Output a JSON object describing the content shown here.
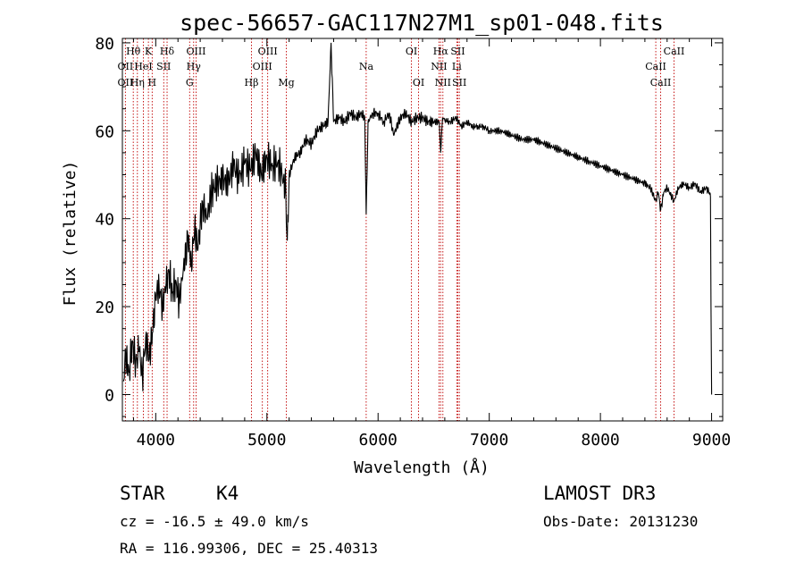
{
  "chart_data": {
    "type": "line",
    "title": "spec-56657-GAC117N27M1_sp01-048.fits",
    "xlabel": "Wavelength (Å)",
    "ylabel": "Flux (relative)",
    "xlim": [
      3700,
      9100
    ],
    "ylim": [
      -6,
      81
    ],
    "xticks": [
      4000,
      5000,
      6000,
      7000,
      8000,
      9000
    ],
    "xtick_labels": [
      "4000",
      "5000",
      "6000",
      "7000",
      "8000",
      "9000"
    ],
    "yticks": [
      0,
      20,
      40,
      60,
      80
    ],
    "ytick_labels": [
      "0",
      "20",
      "40",
      "60",
      "80"
    ],
    "grid": false,
    "series": [
      {
        "name": "flux",
        "color": "#000000",
        "x": [
          3710,
          3730,
          3760,
          3790,
          3820,
          3850,
          3880,
          3910,
          3940,
          3970,
          4000,
          4030,
          4060,
          4090,
          4120,
          4150,
          4180,
          4210,
          4250,
          4290,
          4320,
          4350,
          4380,
          4420,
          4460,
          4500,
          4550,
          4600,
          4650,
          4700,
          4750,
          4800,
          4850,
          4900,
          4950,
          5000,
          5050,
          5100,
          5150,
          5170,
          5183,
          5200,
          5250,
          5300,
          5350,
          5400,
          5450,
          5500,
          5550,
          5577,
          5600,
          5650,
          5700,
          5750,
          5800,
          5850,
          5880,
          5893,
          5910,
          5950,
          6000,
          6050,
          6100,
          6140,
          6200,
          6250,
          6300,
          6350,
          6400,
          6450,
          6500,
          6550,
          6563,
          6580,
          6620,
          6650,
          6700,
          6750,
          6800,
          6850,
          6900,
          6950,
          7000,
          7100,
          7200,
          7300,
          7400,
          7500,
          7600,
          7700,
          7800,
          7900,
          8000,
          8100,
          8200,
          8300,
          8400,
          8450,
          8498,
          8520,
          8542,
          8570,
          8600,
          8662,
          8700,
          8750,
          8800,
          8850,
          8900,
          8950,
          8980,
          8990,
          8995,
          9000
        ],
        "values": [
          3,
          9,
          5,
          12,
          7,
          10,
          4,
          13,
          8,
          14,
          22,
          25,
          20,
          24,
          28,
          23,
          26,
          21,
          29,
          35,
          30,
          38,
          33,
          44,
          40,
          46,
          48,
          49,
          48,
          52,
          49,
          53,
          51,
          55,
          50,
          54,
          52,
          53,
          49,
          47,
          35,
          50,
          54,
          55,
          58,
          57,
          60,
          61,
          62,
          80,
          62,
          63,
          62,
          64,
          63,
          64,
          63,
          41,
          62,
          64,
          64,
          62,
          64,
          59,
          63,
          64,
          62,
          63,
          63,
          62,
          62,
          62,
          55,
          63,
          62,
          62,
          63,
          61,
          62,
          61,
          61,
          61,
          60,
          60,
          59,
          58,
          58,
          57,
          56,
          55,
          54,
          53,
          52,
          51,
          50,
          49,
          48,
          47,
          44,
          46,
          42,
          46,
          47,
          44,
          47,
          48,
          47,
          48,
          46,
          47,
          46,
          45,
          20,
          0
        ]
      }
    ],
    "line_identifications": [
      {
        "label": "Hθ",
        "x": 3798,
        "row": 1
      },
      {
        "label": "K",
        "x": 3934,
        "row": 1
      },
      {
        "label": "Hδ",
        "x": 4102,
        "row": 1
      },
      {
        "label": "OIII",
        "x": 4363,
        "row": 1
      },
      {
        "label": "OIII",
        "x": 5007,
        "row": 1
      },
      {
        "label": "OI",
        "x": 6300,
        "row": 1
      },
      {
        "label": "Hα",
        "x": 6563,
        "row": 1
      },
      {
        "label": "SII",
        "x": 6717,
        "row": 1
      },
      {
        "label": "CaII",
        "x": 8662,
        "row": 1
      },
      {
        "label": "OII",
        "x": 3727,
        "row": 2
      },
      {
        "label": "HeI",
        "x": 3889,
        "row": 2
      },
      {
        "label": "SII",
        "x": 4072,
        "row": 2
      },
      {
        "label": "Hγ",
        "x": 4341,
        "row": 2
      },
      {
        "label": "OIII",
        "x": 4959,
        "row": 2
      },
      {
        "label": "Na",
        "x": 5893,
        "row": 2
      },
      {
        "label": "NII",
        "x": 6548,
        "row": 2
      },
      {
        "label": "Li",
        "x": 6708,
        "row": 2
      },
      {
        "label": "CaII",
        "x": 8498,
        "row": 2
      },
      {
        "label": "OII",
        "x": 3727,
        "row": 3
      },
      {
        "label": "Hη",
        "x": 3835,
        "row": 3
      },
      {
        "label": "H",
        "x": 3968,
        "row": 3
      },
      {
        "label": "G",
        "x": 4305,
        "row": 3
      },
      {
        "label": "Hβ",
        "x": 4861,
        "row": 3
      },
      {
        "label": "Mg",
        "x": 5175,
        "row": 3
      },
      {
        "label": "OI",
        "x": 6364,
        "row": 3
      },
      {
        "label": "NII",
        "x": 6583,
        "row": 3
      },
      {
        "label": "SII",
        "x": 6731,
        "row": 3
      },
      {
        "label": "CaII",
        "x": 8542,
        "row": 3
      }
    ],
    "marker_lines_x": [
      3727,
      3798,
      3835,
      3889,
      3934,
      3968,
      4072,
      4102,
      4305,
      4341,
      4363,
      4861,
      4959,
      5007,
      5175,
      5893,
      6300,
      6364,
      6548,
      6563,
      6583,
      6708,
      6717,
      6731,
      8498,
      8542,
      8662
    ],
    "marker_color": "#c00000",
    "line_color": "#000000"
  },
  "info": {
    "object_class": "STAR",
    "subclass": "K4",
    "survey": "LAMOST DR3",
    "cz_text": "cz = -16.5 ± 49.0 km/s",
    "obs_date": "Obs-Date: 20131230",
    "radec_text": "RA = 116.99306, DEC =  25.40313"
  }
}
